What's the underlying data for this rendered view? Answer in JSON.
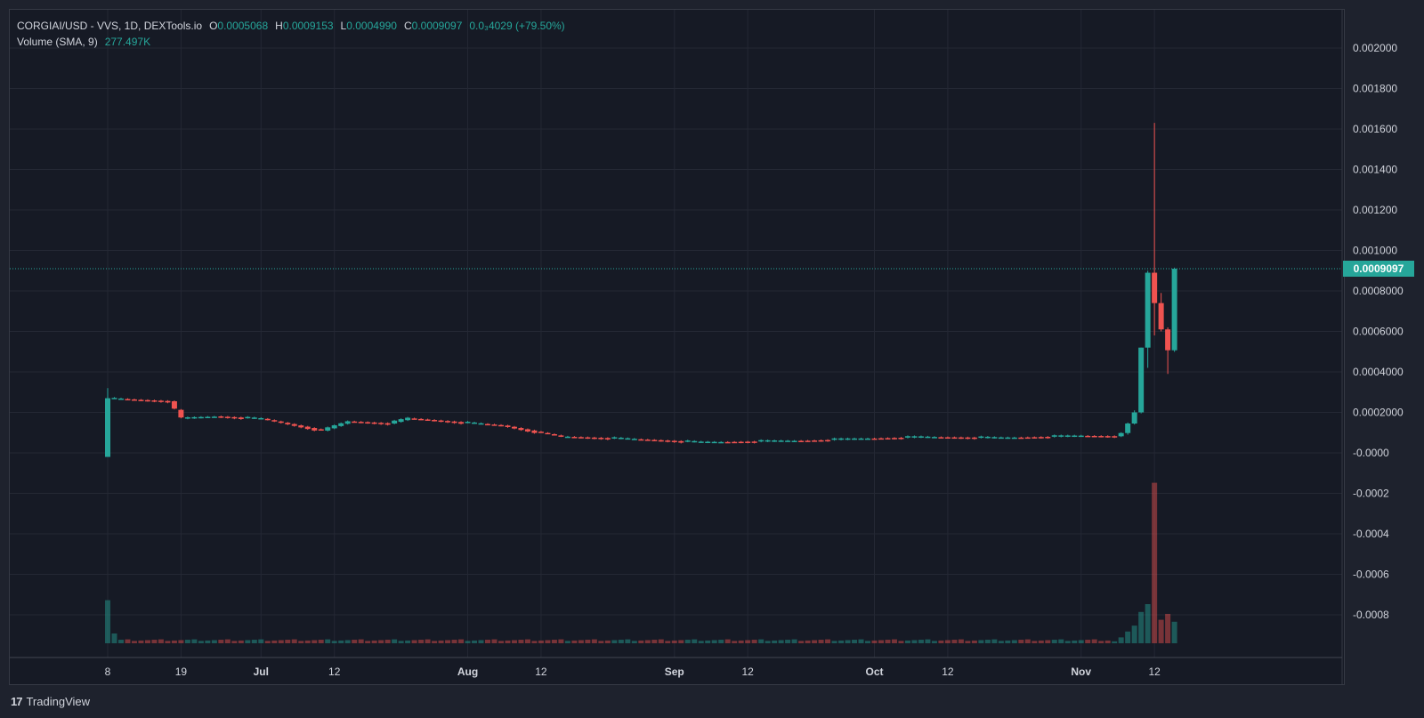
{
  "legend": {
    "symbol": "CORGIAI/USD - VVS, 1D, DEXTools.io",
    "open_label": "O",
    "open": "0.0005068",
    "high_label": "H",
    "high": "0.0009153",
    "low_label": "L",
    "low": "0.0004990",
    "close_label": "C",
    "close": "0.0009097",
    "change": "0.0₃4029 (+79.50%)",
    "volume_label": "Volume (SMA, 9)",
    "volume_value": "277.497K"
  },
  "price_tag": "0.0009097",
  "brand": {
    "logo": "17",
    "name": "TradingView"
  },
  "colors": {
    "up": "#26a69a",
    "down": "#ef5350",
    "background": "#161a25",
    "grid": "#242834",
    "text": "#d1d4dc"
  },
  "chart_data": {
    "type": "candlestick",
    "timeframe": "1D",
    "y_axis": {
      "ticks": [
        "0.002000",
        "0.001800",
        "0.001600",
        "0.001400",
        "0.001200",
        "0.001000",
        "0.0008000",
        "0.0006000",
        "0.0004000",
        "0.0002000",
        "-0.0000",
        "-0.0002",
        "-0.0004",
        "-0.0006",
        "-0.0008"
      ],
      "range": [
        -0.00095,
        0.0021
      ]
    },
    "x_axis": {
      "ticks": [
        "8",
        "19",
        "Jul",
        "12",
        "Aug",
        "12",
        "Sep",
        "12",
        "Oct",
        "12",
        "Nov",
        "12"
      ],
      "tick_dates": [
        "2023-06-08",
        "2023-06-19",
        "2023-07-01",
        "2023-07-12",
        "2023-08-01",
        "2023-08-12",
        "2023-09-01",
        "2023-09-12",
        "2023-10-01",
        "2023-10-12",
        "2023-11-01",
        "2023-11-12"
      ],
      "range": [
        "2023-06-08",
        "2023-11-28"
      ]
    },
    "last_price": 0.0009097,
    "anchors": [
      {
        "date": "2023-06-08",
        "price": 0.00027
      },
      {
        "date": "2023-06-12",
        "price": 0.000262
      },
      {
        "date": "2023-06-17",
        "price": 0.000255
      },
      {
        "date": "2023-06-19",
        "price": 0.00017
      },
      {
        "date": "2023-06-24",
        "price": 0.00018
      },
      {
        "date": "2023-07-01",
        "price": 0.000168
      },
      {
        "date": "2023-07-10",
        "price": 0.00011
      },
      {
        "date": "2023-07-14",
        "price": 0.000155
      },
      {
        "date": "2023-07-20",
        "price": 0.000145
      },
      {
        "date": "2023-07-23",
        "price": 0.00017
      },
      {
        "date": "2023-07-27",
        "price": 0.00016
      },
      {
        "date": "2023-08-06",
        "price": 0.000135
      },
      {
        "date": "2023-08-15",
        "price": 8e-05
      },
      {
        "date": "2023-08-24",
        "price": 7e-05
      },
      {
        "date": "2023-09-05",
        "price": 5.2e-05
      },
      {
        "date": "2023-09-20",
        "price": 6e-05
      },
      {
        "date": "2023-10-01",
        "price": 7.2e-05
      },
      {
        "date": "2023-10-08",
        "price": 7.8e-05
      },
      {
        "date": "2023-10-20",
        "price": 7.4e-05
      },
      {
        "date": "2023-11-01",
        "price": 8.4e-05
      },
      {
        "date": "2023-11-06",
        "price": 8.2e-05
      }
    ],
    "candles": [
      {
        "date": "2023-06-08",
        "o": -2e-05,
        "h": 0.00032,
        "l": -2e-05,
        "c": 0.00027
      },
      {
        "date": "2023-11-07",
        "o": 8.2e-05,
        "h": 0.000102,
        "l": 7.8e-05,
        "c": 9.8e-05
      },
      {
        "date": "2023-11-08",
        "o": 9.8e-05,
        "h": 0.00015,
        "l": 9e-05,
        "c": 0.000145
      },
      {
        "date": "2023-11-09",
        "o": 0.000145,
        "h": 0.00021,
        "l": 0.00014,
        "c": 0.0002
      },
      {
        "date": "2023-11-10",
        "o": 0.0002,
        "h": 0.00052,
        "l": 0.000195,
        "c": 0.00052
      },
      {
        "date": "2023-11-11",
        "o": 0.00052,
        "h": 0.0009,
        "l": 0.00042,
        "c": 0.00089
      },
      {
        "date": "2023-11-12",
        "o": 0.00089,
        "h": 0.00163,
        "l": 0.00058,
        "c": 0.00074
      },
      {
        "date": "2023-11-13",
        "o": 0.00074,
        "h": 0.00079,
        "l": 0.0006,
        "c": 0.00061
      },
      {
        "date": "2023-11-14",
        "o": 0.00061,
        "h": 0.00062,
        "l": 0.00039,
        "c": 0.000507
      },
      {
        "date": "2023-11-15",
        "o": 0.0005068,
        "h": 0.0009153,
        "l": 0.000499,
        "c": 0.0009097
      }
    ],
    "volume": [
      {
        "date": "2023-06-08",
        "v": 0.22,
        "up": true
      },
      {
        "date": "2023-06-09",
        "v": 0.05,
        "up": true
      },
      {
        "date": "2023-11-06",
        "v": 0.01,
        "up": true
      },
      {
        "date": "2023-11-07",
        "v": 0.03,
        "up": true
      },
      {
        "date": "2023-11-08",
        "v": 0.06,
        "up": true
      },
      {
        "date": "2023-11-09",
        "v": 0.09,
        "up": true
      },
      {
        "date": "2023-11-10",
        "v": 0.16,
        "up": true
      },
      {
        "date": "2023-11-11",
        "v": 0.2,
        "up": true
      },
      {
        "date": "2023-11-12",
        "v": 0.82,
        "up": false
      },
      {
        "date": "2023-11-13",
        "v": 0.12,
        "up": false
      },
      {
        "date": "2023-11-14",
        "v": 0.15,
        "up": false
      },
      {
        "date": "2023-11-15",
        "v": 0.11,
        "up": true
      }
    ]
  }
}
